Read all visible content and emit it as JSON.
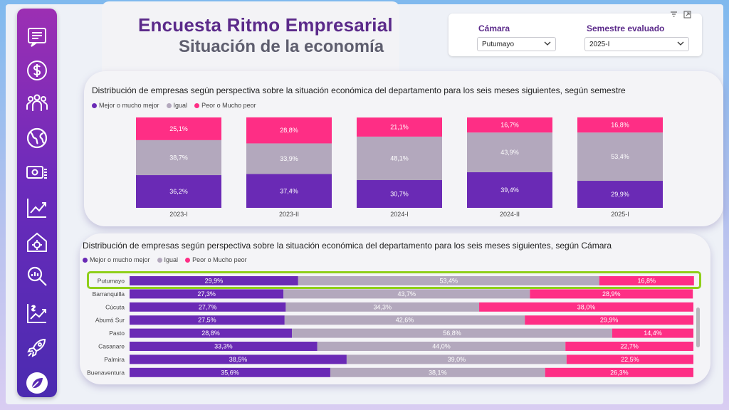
{
  "header": {
    "title": "Encuesta Ritmo Empresarial",
    "subtitle": "Situación de la economía"
  },
  "filters": {
    "camara_label": "Cámara",
    "camara_value": "Putumayo",
    "semestre_label": "Semestre evaluado",
    "semestre_value": "2025-I"
  },
  "sidebar": {
    "items": [
      {
        "name": "survey-icon"
      },
      {
        "name": "dollar-icon"
      },
      {
        "name": "people-icon"
      },
      {
        "name": "globe-icon"
      },
      {
        "name": "money-icon"
      },
      {
        "name": "trend-chart-icon"
      },
      {
        "name": "house-gear-icon"
      },
      {
        "name": "search-chart-icon"
      },
      {
        "name": "growth-icon"
      },
      {
        "name": "rocket-icon"
      },
      {
        "name": "leaf-icon"
      }
    ]
  },
  "colors": {
    "mejor": "#6a2ab5",
    "igual": "#b3a8bd",
    "peor": "#fe2e85"
  },
  "chart_data": [
    {
      "type": "bar",
      "stacked": true,
      "orientation": "vertical",
      "title": "Distribución de empresas según perspectiva sobre la situación económica del departamento para los seis meses siguientes, según semestre",
      "legend": [
        "Mejor o mucho mejor",
        "Igual",
        "Peor o Mucho peor"
      ],
      "categories": [
        "2023-I",
        "2023-II",
        "2024-I",
        "2024-II",
        "2025-I"
      ],
      "series": [
        {
          "name": "Mejor o mucho mejor",
          "values": [
            36.2,
            37.4,
            30.7,
            39.4,
            29.9
          ],
          "labels": [
            "36,2%",
            "37,4%",
            "30,7%",
            "39,4%",
            "29,9%"
          ]
        },
        {
          "name": "Igual",
          "values": [
            38.7,
            33.9,
            48.1,
            43.9,
            53.4
          ],
          "labels": [
            "38,7%",
            "33,9%",
            "48,1%",
            "43,9%",
            "53,4%"
          ]
        },
        {
          "name": "Peor o Mucho peor",
          "values": [
            25.1,
            28.8,
            21.1,
            16.7,
            16.8
          ],
          "labels": [
            "25,1%",
            "28,8%",
            "21,1%",
            "16,7%",
            "16,8%"
          ]
        }
      ]
    },
    {
      "type": "bar",
      "stacked": true,
      "orientation": "horizontal",
      "title": "Distribución de empresas según perspectiva sobre la situación económica del departamento para los seis meses siguientes, según Cámara",
      "legend": [
        "Mejor o mucho mejor",
        "Igual",
        "Peor o Mucho peor"
      ],
      "categories": [
        "Putumayo",
        "Barranquilla",
        "Cúcuta",
        "Aburrá Sur",
        "Pasto",
        "Casanare",
        "Palmira",
        "Buenaventura"
      ],
      "highlighted": "Putumayo",
      "series": [
        {
          "name": "Mejor o mucho mejor",
          "values": [
            29.9,
            27.3,
            27.7,
            27.5,
            28.8,
            33.3,
            38.5,
            35.6
          ],
          "labels": [
            "29,9%",
            "27,3%",
            "27,7%",
            "27,5%",
            "28,8%",
            "33,3%",
            "38,5%",
            "35,6%"
          ]
        },
        {
          "name": "Igual",
          "values": [
            53.4,
            43.7,
            34.3,
            42.6,
            56.8,
            44.0,
            39.0,
            38.1
          ],
          "labels": [
            "53,4%",
            "43,7%",
            "34,3%",
            "42,6%",
            "56,8%",
            "44,0%",
            "39,0%",
            "38,1%"
          ]
        },
        {
          "name": "Peor o Mucho peor",
          "values": [
            16.8,
            28.9,
            38.0,
            29.9,
            14.4,
            22.7,
            22.5,
            26.3
          ],
          "labels": [
            "16,8%",
            "28,9%",
            "38,0%",
            "29,9%",
            "14,4%",
            "22,7%",
            "22,5%",
            "26,3%"
          ]
        }
      ]
    }
  ]
}
